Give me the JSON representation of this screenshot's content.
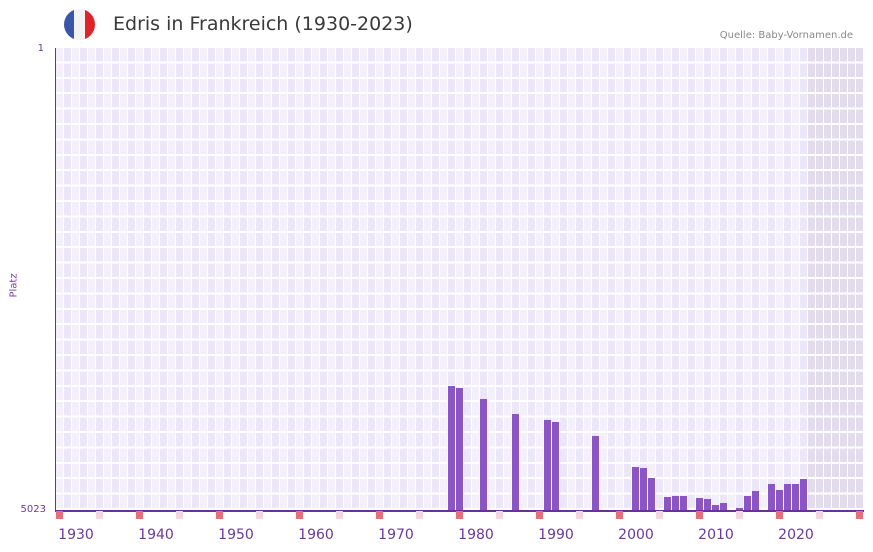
{
  "header": {
    "title": "Edris in Frankreich (1930-2023)",
    "source": "Quelle: Baby-Vornamen.de",
    "flag_colors": [
      "#3a56a8",
      "#f2f2f2",
      "#e0232b"
    ]
  },
  "colors": {
    "bar": "#8b55c6",
    "axis": "#6b2fa0",
    "grid_bg_a": "#f3effb",
    "grid_bg_b": "#ece7f8",
    "future_bg": "#e2dcec",
    "decade_marker": "#e3707a",
    "half_decade_marker": "#f3d6df"
  },
  "chart_data": {
    "type": "bar",
    "title": "Edris in Frankreich (1930-2023)",
    "xlabel": "",
    "ylabel": "Platz",
    "y_inverted": true,
    "ylim": [
      5023,
      1
    ],
    "x_range": [
      1928,
      2028
    ],
    "xticks": [
      "1930",
      "1940",
      "1950",
      "1960",
      "1970",
      "1980",
      "1990",
      "2000",
      "2010",
      "2020"
    ],
    "yticks": [
      "1",
      "5023"
    ],
    "shaded_from_year": 2022,
    "grid": true,
    "legend": null,
    "x": [
      1977,
      1978,
      1981,
      1985,
      1989,
      1990,
      1995,
      2000,
      2001,
      2002,
      2004,
      2005,
      2006,
      2008,
      2009,
      2010,
      2011,
      2013,
      2014,
      2015,
      2017,
      2018,
      2019,
      2020,
      2021
    ],
    "values": [
      3675,
      3697,
      3816,
      3979,
      4045,
      4066,
      4219,
      4556,
      4567,
      4675,
      4882,
      4871,
      4871,
      4893,
      4904,
      4969,
      4947,
      5001,
      4871,
      4817,
      4740,
      4806,
      4740,
      4740,
      4686
    ]
  }
}
